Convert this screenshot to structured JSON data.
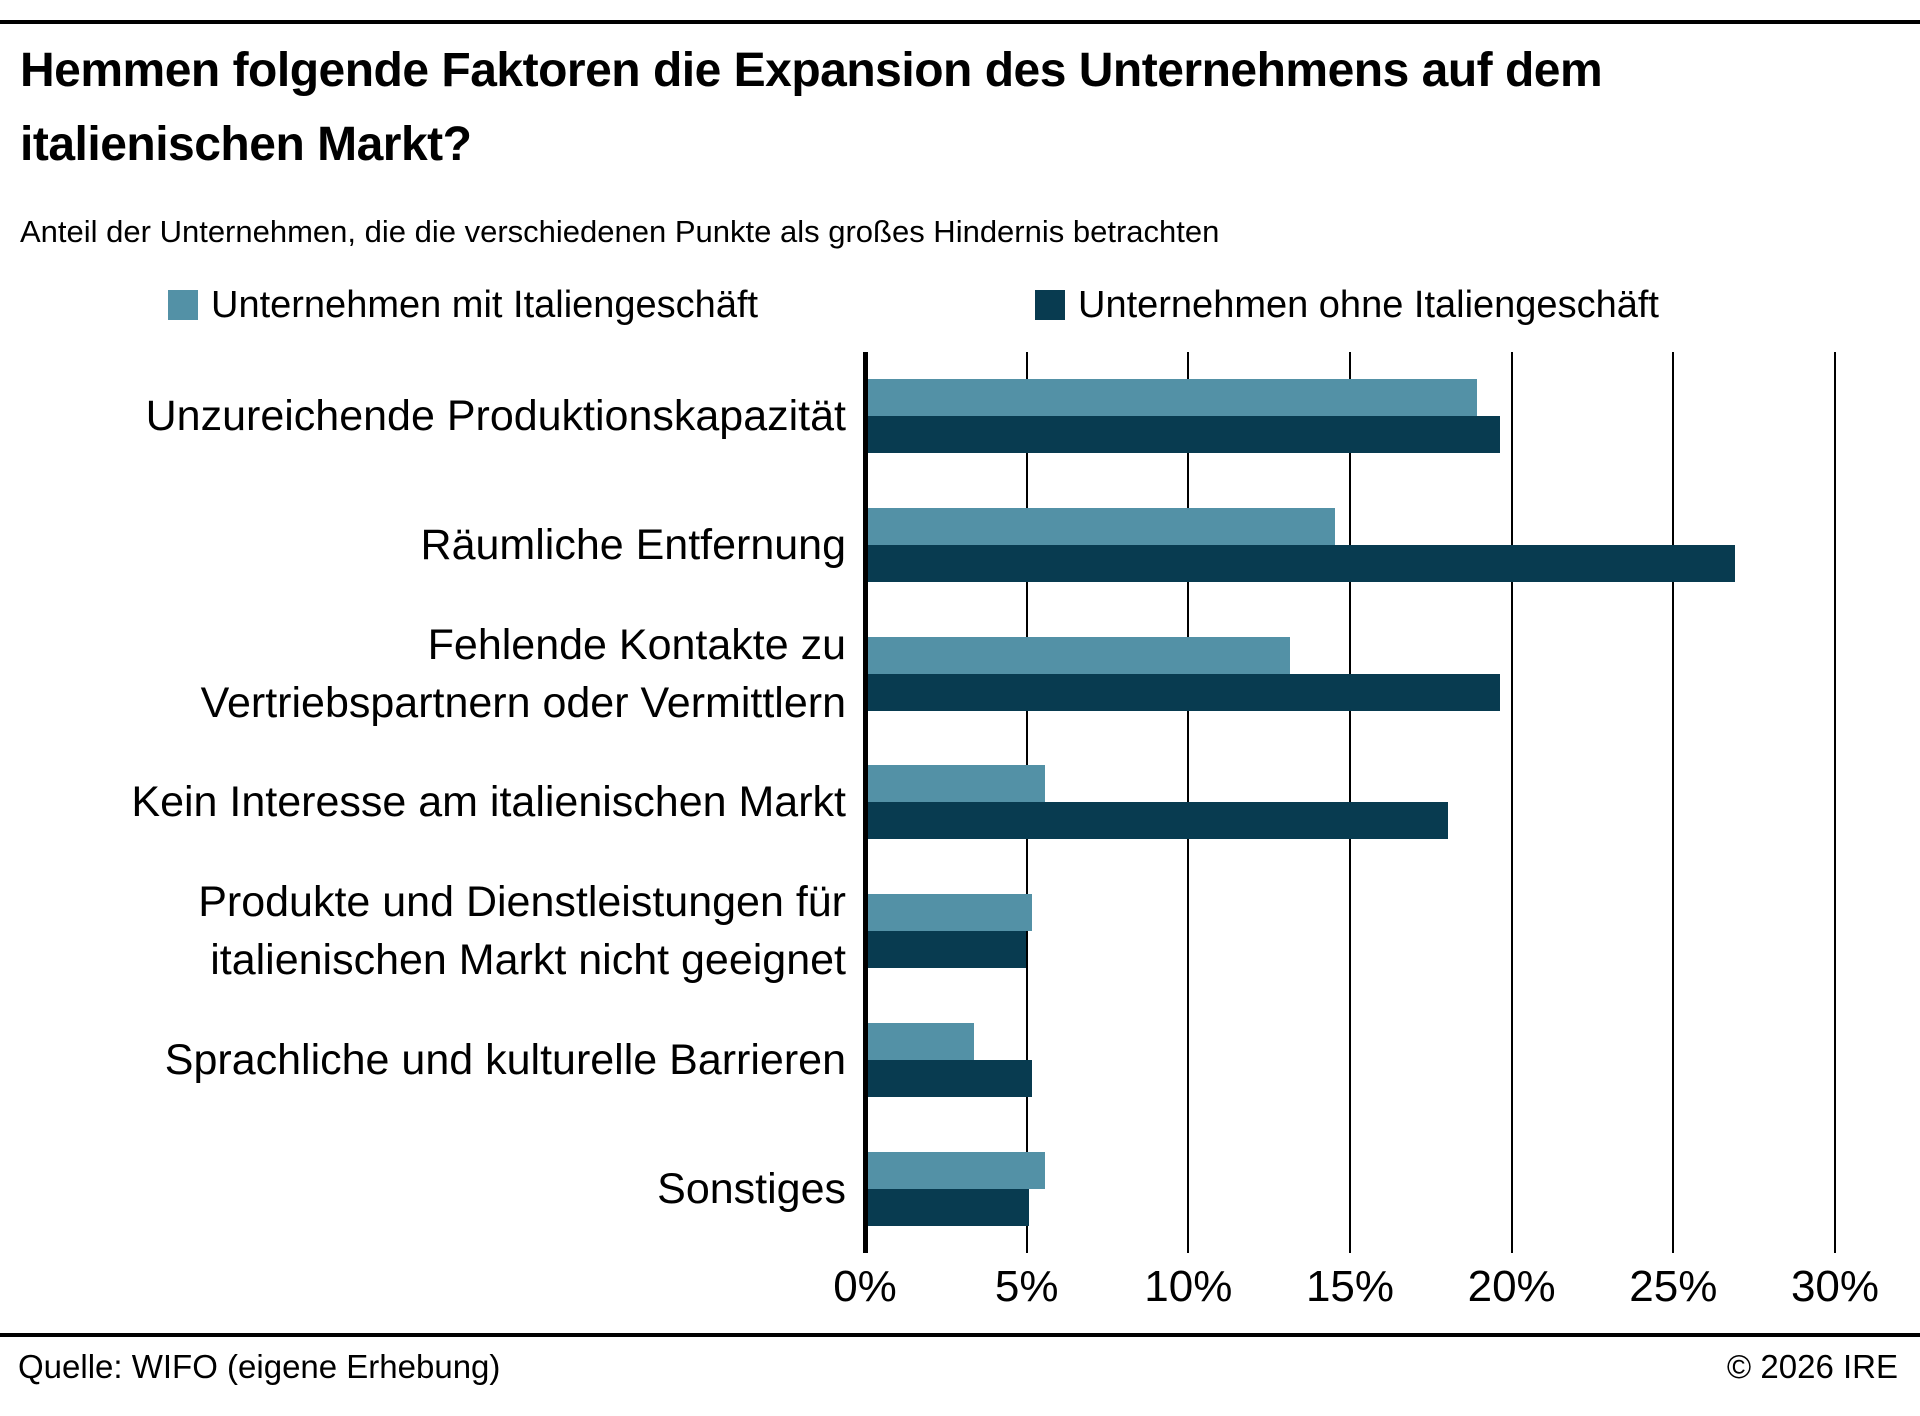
{
  "page": {
    "title": "Hemmen folgende Faktoren die Expansion des Unternehmens auf dem italienischen Markt?",
    "subtitle": "Anteil der Unternehmen, die die verschiedenen Punkte als großes Hindernis betrachten",
    "footer_left": "Quelle: WIFO (eigene Erhebung)",
    "footer_right": "© 2026 IRE"
  },
  "colors": {
    "series_mit": "#5391A6",
    "series_ohne": "#083B50",
    "axis": "#000000",
    "grid": "#000000"
  },
  "chart_data": {
    "type": "bar",
    "orientation": "horizontal",
    "title": "Hemmen folgende Faktoren die Expansion des Unternehmens auf dem italienischen Markt?",
    "subtitle": "Anteil der Unternehmen, die die verschiedenen Punkte als großes Hindernis betrachten",
    "categories": [
      "Unzureichende Produktionskapazität",
      "Räumliche Entfernung",
      "Fehlende Kontakte zu Vertriebspartnern oder Vermittlern",
      "Kein Interesse am italienischen Markt",
      "Produkte und Dienstleistungen für italienischen Markt nicht geeignet",
      "Sprachliche und kulturelle Barrieren",
      "Sonstiges"
    ],
    "category_lines": [
      [
        "Unzureichende Produktionskapazität"
      ],
      [
        "Räumliche Entfernung"
      ],
      [
        "Fehlende Kontakte zu",
        "Vertriebspartnern oder Vermittlern"
      ],
      [
        "Kein Interesse am italienischen Markt"
      ],
      [
        "Produkte und Dienstleistungen für",
        "italienischen Markt nicht geeignet"
      ],
      [
        "Sprachliche und kulturelle Barrieren"
      ],
      [
        "Sonstiges"
      ]
    ],
    "series": [
      {
        "name": "Unternehmen mit Italiengeschäft",
        "color_key": "series_mit",
        "values": [
          18.9,
          14.5,
          13.1,
          5.5,
          5.1,
          3.3,
          5.5
        ]
      },
      {
        "name": "Unternehmen ohne Italiengeschäft",
        "color_key": "series_ohne",
        "values": [
          19.6,
          26.9,
          19.6,
          18.0,
          4.9,
          5.1,
          5.0
        ]
      }
    ],
    "xlabel": "",
    "ylabel": "",
    "x_ticks": [
      "0%",
      "5%",
      "10%",
      "15%",
      "20%",
      "25%",
      "30%"
    ],
    "x_tick_values": [
      0,
      5,
      10,
      15,
      20,
      25,
      30
    ],
    "xlim": [
      0,
      30
    ],
    "grid": "vertical",
    "legend_position": "top",
    "unit": "%"
  }
}
